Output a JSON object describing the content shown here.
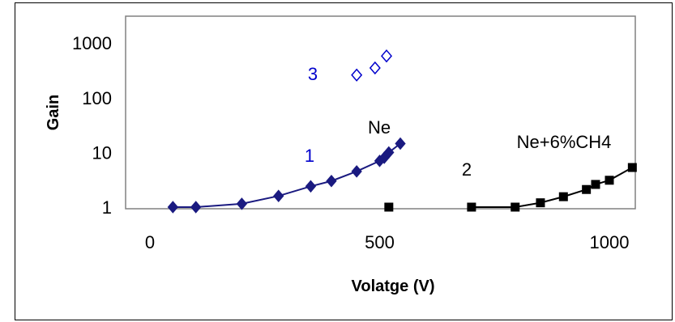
{
  "chart_data": {
    "type": "scatter",
    "title": "",
    "xlabel": "Volatge (V)",
    "ylabel": "Gain",
    "xlim": [
      0,
      1100
    ],
    "ylim": [
      1,
      1000
    ],
    "y_scale": "log",
    "x_ticks": [
      "0",
      "500",
      "1000"
    ],
    "y_ticks": [
      "1",
      "10",
      "100",
      "1000"
    ],
    "grid": false,
    "legend": "none",
    "series": [
      {
        "label": "1",
        "marker": "filled-diamond",
        "color": "#1a1a80",
        "line": true,
        "x": [
          50,
          100,
          200,
          280,
          350,
          395,
          450,
          500,
          510,
          520,
          545
        ],
        "y": [
          1.0,
          1.0,
          1.15,
          1.6,
          2.4,
          3.0,
          4.5,
          7.0,
          8.0,
          10.0,
          14.5
        ]
      },
      {
        "label": "2",
        "marker": "filled-square",
        "color": "#000000",
        "line": true,
        "x": [
          520,
          700,
          795,
          850,
          900,
          950,
          970,
          1000,
          1050
        ],
        "y": [
          1.0,
          1.0,
          1.0,
          1.2,
          1.55,
          2.1,
          2.6,
          3.1,
          5.3
        ]
      },
      {
        "label": "3",
        "marker": "open-diamond",
        "color": "#0000cc",
        "line": false,
        "x": [
          450,
          490,
          515
        ],
        "y": [
          260,
          350,
          580
        ]
      }
    ],
    "annotations": [
      {
        "text": "1",
        "color": "#0000cc"
      },
      {
        "text": "2",
        "color": "#000000"
      },
      {
        "text": "3",
        "color": "#0000cc"
      },
      {
        "text": "Ne",
        "color": "#000000"
      },
      {
        "text": "Ne+6%CH4",
        "color": "#000000"
      }
    ]
  }
}
